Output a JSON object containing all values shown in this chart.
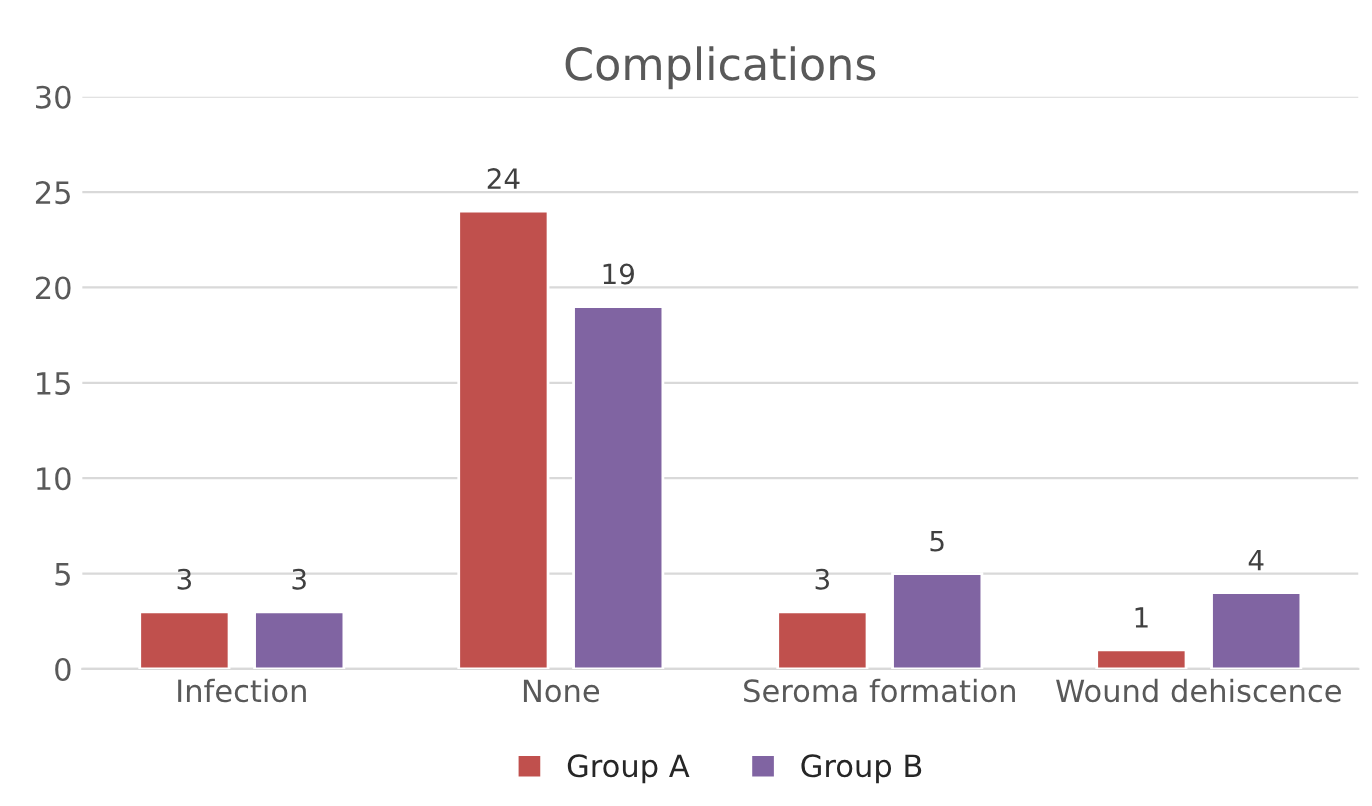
{
  "chart_data": {
    "type": "bar",
    "title": "Complications",
    "categories": [
      "Infection",
      "None",
      "Seroma formation",
      "Wound dehiscence"
    ],
    "series": [
      {
        "name": "Group A",
        "color": "#c0504d",
        "values": [
          3,
          24,
          3,
          1
        ]
      },
      {
        "name": "Group B",
        "color": "#8064a2",
        "values": [
          3,
          19,
          5,
          4
        ]
      }
    ],
    "ylim": [
      0,
      30
    ],
    "yticks": [
      0,
      5,
      10,
      15,
      20,
      25,
      30
    ],
    "grid": "y",
    "legend": "bottom",
    "data_labels": true
  }
}
